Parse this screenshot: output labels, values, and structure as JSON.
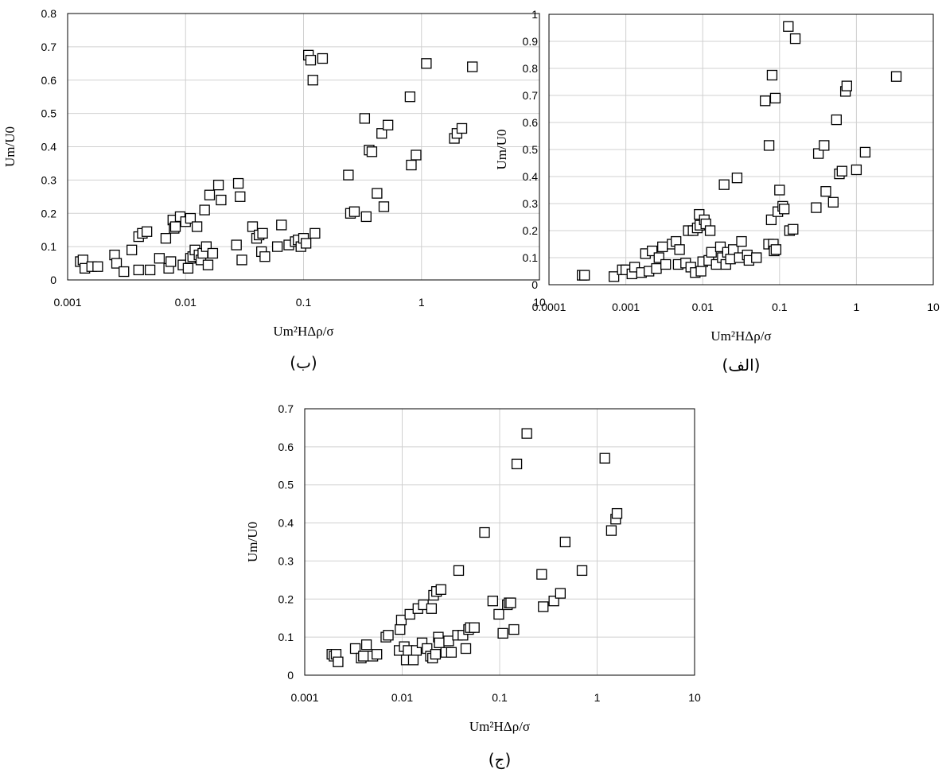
{
  "chart_data": [
    {
      "type": "scatter",
      "caption": "(ب)",
      "xlabel": "Um²HΔρ/σ",
      "ylabel": "Um/U0",
      "xscale": "log",
      "xlim": [
        0.001,
        10
      ],
      "ylim": [
        0,
        0.8
      ],
      "xticks": [
        "0.001",
        "0.01",
        "0.1",
        "1",
        "10"
      ],
      "yticks": [
        "0",
        "0.1",
        "0.2",
        "0.3",
        "0.4",
        "0.5",
        "0.6",
        "0.7",
        "0.8"
      ],
      "grid": true,
      "marker": "open-square",
      "points": [
        [
          0.00128,
          0.055
        ],
        [
          0.00135,
          0.06
        ],
        [
          0.0014,
          0.035
        ],
        [
          0.0016,
          0.04
        ],
        [
          0.0018,
          0.04
        ],
        [
          0.0025,
          0.075
        ],
        [
          0.0026,
          0.05
        ],
        [
          0.003,
          0.025
        ],
        [
          0.0035,
          0.09
        ],
        [
          0.004,
          0.03
        ],
        [
          0.004,
          0.13
        ],
        [
          0.0043,
          0.14
        ],
        [
          0.0047,
          0.145
        ],
        [
          0.005,
          0.03
        ],
        [
          0.006,
          0.065
        ],
        [
          0.0068,
          0.125
        ],
        [
          0.0072,
          0.035
        ],
        [
          0.0075,
          0.055
        ],
        [
          0.0078,
          0.18
        ],
        [
          0.008,
          0.155
        ],
        [
          0.0082,
          0.16
        ],
        [
          0.009,
          0.19
        ],
        [
          0.0095,
          0.045
        ],
        [
          0.01,
          0.175
        ],
        [
          0.0105,
          0.035
        ],
        [
          0.011,
          0.185
        ],
        [
          0.011,
          0.065
        ],
        [
          0.0115,
          0.07
        ],
        [
          0.012,
          0.09
        ],
        [
          0.0125,
          0.16
        ],
        [
          0.013,
          0.075
        ],
        [
          0.0135,
          0.06
        ],
        [
          0.014,
          0.08
        ],
        [
          0.0145,
          0.21
        ],
        [
          0.015,
          0.1
        ],
        [
          0.0155,
          0.045
        ],
        [
          0.016,
          0.255
        ],
        [
          0.017,
          0.08
        ],
        [
          0.019,
          0.285
        ],
        [
          0.02,
          0.24
        ],
        [
          0.027,
          0.105
        ],
        [
          0.028,
          0.29
        ],
        [
          0.029,
          0.25
        ],
        [
          0.03,
          0.06
        ],
        [
          0.037,
          0.16
        ],
        [
          0.04,
          0.125
        ],
        [
          0.042,
          0.135
        ],
        [
          0.044,
          0.085
        ],
        [
          0.045,
          0.14
        ],
        [
          0.047,
          0.07
        ],
        [
          0.06,
          0.1
        ],
        [
          0.065,
          0.165
        ],
        [
          0.075,
          0.105
        ],
        [
          0.085,
          0.115
        ],
        [
          0.09,
          0.12
        ],
        [
          0.095,
          0.1
        ],
        [
          0.1,
          0.125
        ],
        [
          0.105,
          0.11
        ],
        [
          0.11,
          0.675
        ],
        [
          0.115,
          0.66
        ],
        [
          0.12,
          0.6
        ],
        [
          0.125,
          0.14
        ],
        [
          0.145,
          0.665
        ],
        [
          0.24,
          0.315
        ],
        [
          0.25,
          0.2
        ],
        [
          0.27,
          0.205
        ],
        [
          0.33,
          0.485
        ],
        [
          0.34,
          0.19
        ],
        [
          0.36,
          0.39
        ],
        [
          0.38,
          0.385
        ],
        [
          0.42,
          0.26
        ],
        [
          0.46,
          0.44
        ],
        [
          0.48,
          0.22
        ],
        [
          0.52,
          0.465
        ],
        [
          0.8,
          0.55
        ],
        [
          0.82,
          0.345
        ],
        [
          0.9,
          0.375
        ],
        [
          1.1,
          0.65
        ],
        [
          1.9,
          0.425
        ],
        [
          2.0,
          0.44
        ],
        [
          2.2,
          0.455
        ],
        [
          2.7,
          0.64
        ]
      ]
    },
    {
      "type": "scatter",
      "caption": "(الف)",
      "xlabel": "Um²HΔρ/σ",
      "ylabel": "Um/U0",
      "xscale": "log",
      "xlim": [
        0.0001,
        10
      ],
      "ylim": [
        0,
        1
      ],
      "xticks": [
        "0.0001",
        "0.001",
        "0.01",
        "0.1",
        "1",
        "10"
      ],
      "yticks": [
        "0",
        "0.1",
        "0.2",
        "0.3",
        "0.4",
        "0.5",
        "0.6",
        "0.7",
        "0.8",
        "0.9",
        "1"
      ],
      "grid": true,
      "marker": "open-square",
      "points": [
        [
          0.00027,
          0.035
        ],
        [
          0.00029,
          0.035
        ],
        [
          0.0007,
          0.03
        ],
        [
          0.0009,
          0.055
        ],
        [
          0.001,
          0.055
        ],
        [
          0.0012,
          0.04
        ],
        [
          0.0013,
          0.065
        ],
        [
          0.0016,
          0.045
        ],
        [
          0.0018,
          0.115
        ],
        [
          0.002,
          0.05
        ],
        [
          0.0022,
          0.125
        ],
        [
          0.0025,
          0.06
        ],
        [
          0.0027,
          0.1
        ],
        [
          0.003,
          0.14
        ],
        [
          0.0033,
          0.075
        ],
        [
          0.004,
          0.15
        ],
        [
          0.0045,
          0.16
        ],
        [
          0.0048,
          0.075
        ],
        [
          0.005,
          0.13
        ],
        [
          0.006,
          0.08
        ],
        [
          0.0065,
          0.2
        ],
        [
          0.007,
          0.065
        ],
        [
          0.0075,
          0.2
        ],
        [
          0.008,
          0.045
        ],
        [
          0.0085,
          0.21
        ],
        [
          0.009,
          0.26
        ],
        [
          0.0092,
          0.22
        ],
        [
          0.0095,
          0.05
        ],
        [
          0.01,
          0.085
        ],
        [
          0.0105,
          0.24
        ],
        [
          0.011,
          0.225
        ],
        [
          0.012,
          0.09
        ],
        [
          0.0125,
          0.2
        ],
        [
          0.013,
          0.12
        ],
        [
          0.015,
          0.075
        ],
        [
          0.017,
          0.14
        ],
        [
          0.018,
          0.1
        ],
        [
          0.019,
          0.37
        ],
        [
          0.02,
          0.075
        ],
        [
          0.021,
          0.12
        ],
        [
          0.023,
          0.095
        ],
        [
          0.025,
          0.13
        ],
        [
          0.028,
          0.395
        ],
        [
          0.03,
          0.1
        ],
        [
          0.032,
          0.16
        ],
        [
          0.038,
          0.11
        ],
        [
          0.04,
          0.09
        ],
        [
          0.05,
          0.1
        ],
        [
          0.065,
          0.68
        ],
        [
          0.072,
          0.15
        ],
        [
          0.073,
          0.515
        ],
        [
          0.078,
          0.24
        ],
        [
          0.08,
          0.775
        ],
        [
          0.083,
          0.15
        ],
        [
          0.085,
          0.125
        ],
        [
          0.088,
          0.69
        ],
        [
          0.09,
          0.13
        ],
        [
          0.095,
          0.27
        ],
        [
          0.1,
          0.35
        ],
        [
          0.11,
          0.29
        ],
        [
          0.115,
          0.28
        ],
        [
          0.13,
          0.955
        ],
        [
          0.135,
          0.2
        ],
        [
          0.15,
          0.205
        ],
        [
          0.16,
          0.91
        ],
        [
          0.3,
          0.285
        ],
        [
          0.32,
          0.485
        ],
        [
          0.38,
          0.515
        ],
        [
          0.4,
          0.345
        ],
        [
          0.5,
          0.305
        ],
        [
          0.55,
          0.61
        ],
        [
          0.6,
          0.41
        ],
        [
          0.65,
          0.42
        ],
        [
          0.72,
          0.715
        ],
        [
          0.75,
          0.735
        ],
        [
          1.0,
          0.425
        ],
        [
          1.3,
          0.49
        ],
        [
          3.3,
          0.77
        ]
      ]
    },
    {
      "type": "scatter",
      "caption": "(ج)",
      "xlabel": "Um²HΔρ/σ",
      "ylabel": "Um/U0",
      "xscale": "log",
      "xlim": [
        0.001,
        10
      ],
      "ylim": [
        0,
        0.7
      ],
      "xticks": [
        "0.001",
        "0.01",
        "0.1",
        "1",
        "10"
      ],
      "yticks": [
        "0",
        "0.1",
        "0.2",
        "0.3",
        "0.4",
        "0.5",
        "0.6",
        "0.7"
      ],
      "grid": true,
      "marker": "open-square",
      "points": [
        [
          0.0019,
          0.055
        ],
        [
          0.002,
          0.05
        ],
        [
          0.0021,
          0.055
        ],
        [
          0.0022,
          0.035
        ],
        [
          0.0033,
          0.07
        ],
        [
          0.0038,
          0.045
        ],
        [
          0.004,
          0.05
        ],
        [
          0.0043,
          0.08
        ],
        [
          0.005,
          0.05
        ],
        [
          0.0055,
          0.055
        ],
        [
          0.0068,
          0.1
        ],
        [
          0.0072,
          0.105
        ],
        [
          0.0093,
          0.065
        ],
        [
          0.0095,
          0.12
        ],
        [
          0.0098,
          0.145
        ],
        [
          0.0105,
          0.075
        ],
        [
          0.011,
          0.04
        ],
        [
          0.0115,
          0.065
        ],
        [
          0.012,
          0.16
        ],
        [
          0.013,
          0.04
        ],
        [
          0.014,
          0.065
        ],
        [
          0.0145,
          0.175
        ],
        [
          0.016,
          0.085
        ],
        [
          0.0165,
          0.185
        ],
        [
          0.018,
          0.07
        ],
        [
          0.0195,
          0.05
        ],
        [
          0.02,
          0.175
        ],
        [
          0.0205,
          0.045
        ],
        [
          0.021,
          0.21
        ],
        [
          0.022,
          0.055
        ],
        [
          0.0225,
          0.22
        ],
        [
          0.0235,
          0.1
        ],
        [
          0.024,
          0.085
        ],
        [
          0.025,
          0.225
        ],
        [
          0.028,
          0.06
        ],
        [
          0.03,
          0.09
        ],
        [
          0.032,
          0.06
        ],
        [
          0.037,
          0.105
        ],
        [
          0.038,
          0.275
        ],
        [
          0.042,
          0.105
        ],
        [
          0.045,
          0.07
        ],
        [
          0.048,
          0.12
        ],
        [
          0.05,
          0.125
        ],
        [
          0.055,
          0.125
        ],
        [
          0.07,
          0.375
        ],
        [
          0.085,
          0.195
        ],
        [
          0.098,
          0.16
        ],
        [
          0.108,
          0.11
        ],
        [
          0.12,
          0.185
        ],
        [
          0.125,
          0.19
        ],
        [
          0.13,
          0.19
        ],
        [
          0.14,
          0.12
        ],
        [
          0.15,
          0.555
        ],
        [
          0.19,
          0.635
        ],
        [
          0.27,
          0.265
        ],
        [
          0.28,
          0.18
        ],
        [
          0.36,
          0.195
        ],
        [
          0.42,
          0.215
        ],
        [
          0.47,
          0.35
        ],
        [
          0.7,
          0.275
        ],
        [
          1.2,
          0.57
        ],
        [
          1.4,
          0.38
        ],
        [
          1.55,
          0.41
        ],
        [
          1.6,
          0.425
        ]
      ]
    }
  ]
}
